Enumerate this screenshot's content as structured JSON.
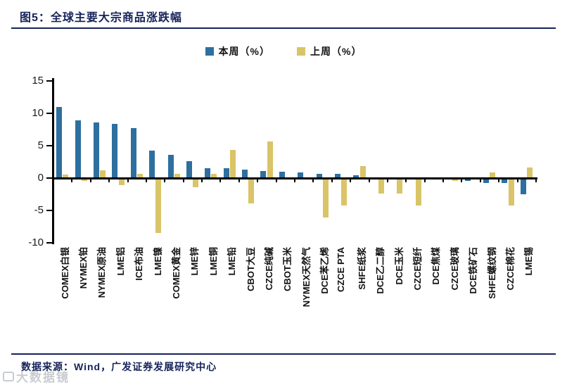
{
  "header": {
    "title": "图5：全球主要大宗商品涨跌幅"
  },
  "legend": {
    "this_week_label": "本周（%）",
    "last_week_label": "上周（%）"
  },
  "footer": {
    "source": "数据来源：Wind，广发证券发展研究中心"
  },
  "watermark": {
    "text": "大数据镜"
  },
  "colors": {
    "this_week": "#2d6f9f",
    "last_week": "#d9c468",
    "accent_navy": "#15235a",
    "axis": "#000000"
  },
  "chart_data": {
    "type": "bar",
    "title": "全球主要大宗商品涨跌幅",
    "xlabel": "",
    "ylabel": "",
    "ylim": [
      -10,
      15
    ],
    "yticks": [
      15,
      10,
      5,
      0,
      -5,
      -10
    ],
    "grid": false,
    "legend_position": "top-center",
    "categories": [
      "COMEX白银",
      "NYMEX铂",
      "NYMEX原油",
      "LME铝",
      "ICE布油",
      "LME镍",
      "COMEX黄金",
      "LME锌",
      "LME铜",
      "LME铅",
      "CBOT大豆",
      "CZCE纯碱",
      "CBOT玉米",
      "NYMEX天然气",
      "DCE苯乙烯",
      "CZCE PTA",
      "SHFE纸浆",
      "DCE乙二醇",
      "DCE玉米",
      "CZCE短纤",
      "DCE焦煤",
      "CZCE玻璃",
      "DCE铁矿石",
      "SHFE螺纹钢",
      "CZCE棉花",
      "LME锡"
    ],
    "series": [
      {
        "name": "本周（%）",
        "color": "#2d6f9f",
        "values": [
          11.0,
          8.9,
          8.6,
          8.4,
          7.7,
          4.2,
          3.6,
          2.6,
          1.5,
          1.5,
          1.3,
          1.1,
          1.0,
          0.9,
          0.7,
          0.6,
          0.4,
          0.0,
          0.0,
          0.0,
          0.0,
          0.0,
          -0.4,
          -0.8,
          -0.8,
          -2.5
        ]
      },
      {
        "name": "上周（%）",
        "color": "#d9c468",
        "values": [
          0.5,
          -0.4,
          1.2,
          -1.1,
          0.6,
          -8.5,
          0.7,
          -1.4,
          0.6,
          4.4,
          -3.9,
          5.6,
          0.1,
          0.0,
          -6.1,
          -4.2,
          1.9,
          -2.4,
          -2.4,
          -4.2,
          0.0,
          -0.4,
          0.0,
          0.9,
          -4.2,
          1.6
        ]
      }
    ]
  }
}
